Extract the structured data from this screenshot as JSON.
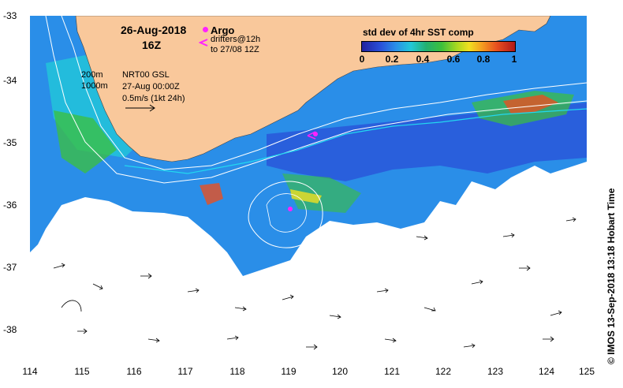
{
  "map": {
    "x_ticks": [
      "114",
      "115",
      "116",
      "117",
      "118",
      "119",
      "120",
      "121",
      "122",
      "123",
      "124",
      "125"
    ],
    "y_ticks": [
      "-33",
      "-34",
      "-35",
      "-36",
      "-37",
      "-38"
    ],
    "lon_range": [
      114,
      125
    ],
    "lat_range": [
      -38.5,
      -33
    ],
    "land_color": "#f9c89b",
    "ocean_cloud_color": "#ffffff"
  },
  "legend": {
    "date": "26-Aug-2018",
    "time": "16Z",
    "argo_label": "Argo",
    "argo_color": "#ff22ff",
    "drifters_label": "drifters@12h",
    "drifters_range": "to 27/08 12Z",
    "isobath_200": "200m",
    "isobath_1000": "1000m",
    "model_label": "NRT00 GSL",
    "model_date": "27-Aug 00:00Z",
    "scale_label": "0.5m/s (1kt 24h)"
  },
  "colorbar": {
    "title": "std dev of 4hr SST comp",
    "ticks": [
      "0",
      "0.2",
      "0.4",
      "0.6",
      "0.8",
      "1"
    ],
    "range": [
      0,
      1
    ]
  },
  "credit": "© IMOS 13-Sep-2018 13:18 Hobart Time"
}
